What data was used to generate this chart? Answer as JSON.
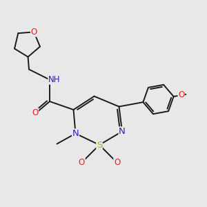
{
  "background_color": "#e8e8e8",
  "bond_color": "#1a1a1a",
  "bond_width": 1.4,
  "atom_colors": {
    "C": "#000000",
    "N": "#2222cc",
    "O": "#dd2222",
    "S": "#bbaa00",
    "H": "#559999"
  },
  "font_size": 8.5,
  "xlim": [
    0,
    10
  ],
  "ylim": [
    0,
    10
  ]
}
